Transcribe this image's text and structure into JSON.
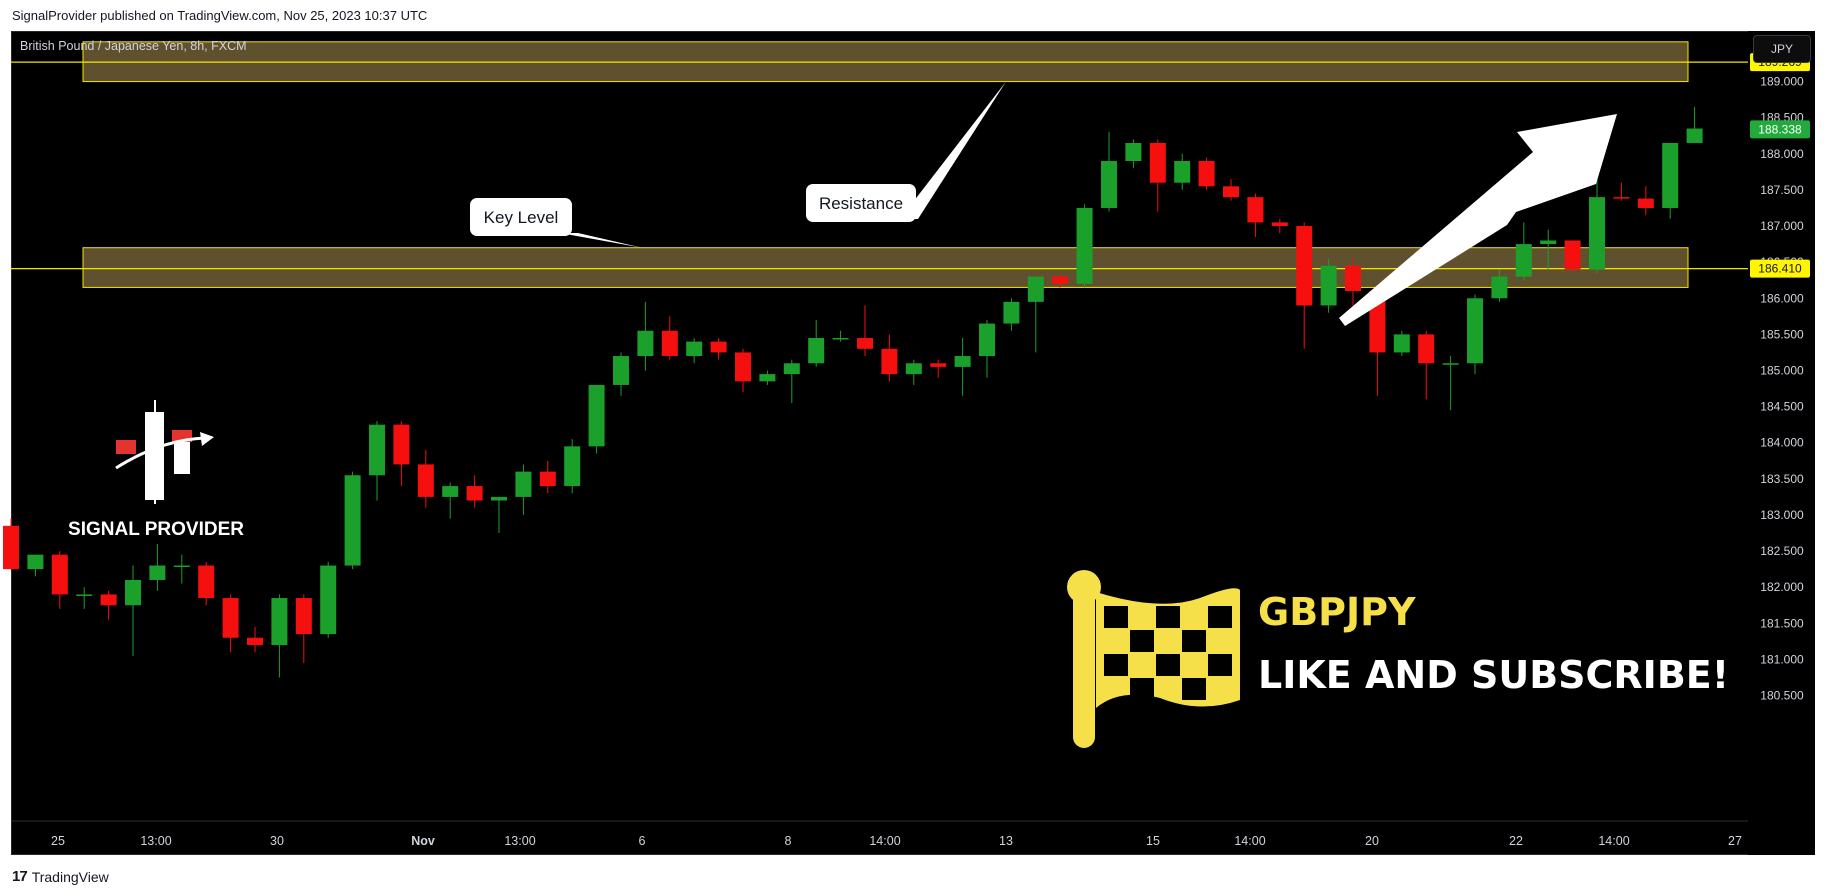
{
  "header": {
    "publisher_line": "SignalProvider published on TradingView.com, Nov 25, 2023 10:37 UTC"
  },
  "symbol_label": "British Pound / Japanese Yen, 8h, FXCM",
  "currency_button": "JPY",
  "footer": {
    "logo_mark": "17",
    "brand": "TradingView"
  },
  "brand_overlay": {
    "name": "SIGNAL PROVIDER"
  },
  "promo": {
    "ticker": "GBPJPY",
    "call_to_action": "LIKE AND SUBSCRIBE!"
  },
  "colors": {
    "up": "#1ca02c",
    "down": "#f50f0f",
    "zone_fill": "#6a5a33",
    "zone_border": "#f2e600",
    "highlight_label": "#fff600",
    "last_price_label": "#22ab3c",
    "promo_yellow": "#f5e04a"
  },
  "chart_data": {
    "type": "candlestick",
    "symbol": "British Pound / Japanese Yen",
    "timeframe": "8h",
    "exchange": "FXCM",
    "ylim": [
      180.3,
      189.7
    ],
    "y_ticks": [
      "180.500",
      "181.000",
      "181.500",
      "182.000",
      "182.500",
      "183.000",
      "183.500",
      "184.000",
      "184.500",
      "185.000",
      "185.500",
      "186.000",
      "186.500",
      "187.000",
      "187.500",
      "188.000",
      "188.500",
      "189.000",
      "189.500"
    ],
    "x_ticks": [
      "25",
      "13:00",
      "30",
      "Nov",
      "13:00",
      "6",
      "8",
      "14:00",
      "13",
      "15",
      "14:00",
      "20",
      "22",
      "14:00",
      "27"
    ],
    "candles": [
      {
        "o": 182.85,
        "h": 182.95,
        "l": 182.25,
        "c": 182.25
      },
      {
        "o": 182.25,
        "h": 182.45,
        "l": 182.15,
        "c": 182.45
      },
      {
        "o": 182.45,
        "h": 182.5,
        "l": 181.7,
        "c": 181.9
      },
      {
        "o": 181.9,
        "h": 182.0,
        "l": 181.7,
        "c": 181.9
      },
      {
        "o": 181.9,
        "h": 181.95,
        "l": 181.55,
        "c": 181.75
      },
      {
        "o": 181.75,
        "h": 182.3,
        "l": 181.05,
        "c": 182.1
      },
      {
        "o": 182.1,
        "h": 182.6,
        "l": 181.95,
        "c": 182.3
      },
      {
        "o": 182.3,
        "h": 182.45,
        "l": 182.05,
        "c": 182.3
      },
      {
        "o": 182.3,
        "h": 182.35,
        "l": 181.75,
        "c": 181.85
      },
      {
        "o": 181.85,
        "h": 181.9,
        "l": 181.1,
        "c": 181.3
      },
      {
        "o": 181.3,
        "h": 181.45,
        "l": 181.1,
        "c": 181.2
      },
      {
        "o": 181.2,
        "h": 181.9,
        "l": 180.75,
        "c": 181.85
      },
      {
        "o": 181.85,
        "h": 181.9,
        "l": 180.95,
        "c": 181.35
      },
      {
        "o": 181.35,
        "h": 182.35,
        "l": 181.3,
        "c": 182.3
      },
      {
        "o": 182.3,
        "h": 183.6,
        "l": 182.25,
        "c": 183.55
      },
      {
        "o": 183.55,
        "h": 184.3,
        "l": 183.2,
        "c": 184.25
      },
      {
        "o": 184.25,
        "h": 184.3,
        "l": 183.4,
        "c": 183.7
      },
      {
        "o": 183.7,
        "h": 183.9,
        "l": 183.1,
        "c": 183.25
      },
      {
        "o": 183.25,
        "h": 183.45,
        "l": 182.95,
        "c": 183.4
      },
      {
        "o": 183.4,
        "h": 183.55,
        "l": 183.1,
        "c": 183.2
      },
      {
        "o": 183.2,
        "h": 183.25,
        "l": 182.75,
        "c": 183.25
      },
      {
        "o": 183.25,
        "h": 183.7,
        "l": 183.0,
        "c": 183.6
      },
      {
        "o": 183.6,
        "h": 183.75,
        "l": 183.3,
        "c": 183.4
      },
      {
        "o": 183.4,
        "h": 184.05,
        "l": 183.3,
        "c": 183.95
      },
      {
        "o": 183.95,
        "h": 184.8,
        "l": 183.85,
        "c": 184.8
      },
      {
        "o": 184.8,
        "h": 185.25,
        "l": 184.65,
        "c": 185.2
      },
      {
        "o": 185.2,
        "h": 185.95,
        "l": 185.0,
        "c": 185.55
      },
      {
        "o": 185.55,
        "h": 185.75,
        "l": 185.15,
        "c": 185.2
      },
      {
        "o": 185.2,
        "h": 185.45,
        "l": 185.1,
        "c": 185.4
      },
      {
        "o": 185.4,
        "h": 185.45,
        "l": 185.15,
        "c": 185.25
      },
      {
        "o": 185.25,
        "h": 185.3,
        "l": 184.7,
        "c": 184.85
      },
      {
        "o": 184.85,
        "h": 185.0,
        "l": 184.8,
        "c": 184.95
      },
      {
        "o": 184.95,
        "h": 185.15,
        "l": 184.55,
        "c": 185.1
      },
      {
        "o": 185.1,
        "h": 185.7,
        "l": 185.05,
        "c": 185.45
      },
      {
        "o": 185.45,
        "h": 185.55,
        "l": 185.4,
        "c": 185.45
      },
      {
        "o": 185.45,
        "h": 185.9,
        "l": 185.2,
        "c": 185.3
      },
      {
        "o": 185.3,
        "h": 185.5,
        "l": 184.85,
        "c": 184.95
      },
      {
        "o": 184.95,
        "h": 185.15,
        "l": 184.8,
        "c": 185.1
      },
      {
        "o": 185.1,
        "h": 185.15,
        "l": 184.9,
        "c": 185.05
      },
      {
        "o": 185.05,
        "h": 185.45,
        "l": 184.65,
        "c": 185.2
      },
      {
        "o": 185.2,
        "h": 185.7,
        "l": 184.9,
        "c": 185.65
      },
      {
        "o": 185.65,
        "h": 186.0,
        "l": 185.55,
        "c": 185.95
      },
      {
        "o": 185.95,
        "h": 186.3,
        "l": 185.25,
        "c": 186.3
      },
      {
        "o": 186.3,
        "h": 186.35,
        "l": 186.15,
        "c": 186.2
      },
      {
        "o": 186.2,
        "h": 187.3,
        "l": 186.15,
        "c": 187.25
      },
      {
        "o": 187.25,
        "h": 188.3,
        "l": 187.2,
        "c": 187.9
      },
      {
        "o": 187.9,
        "h": 188.2,
        "l": 187.8,
        "c": 188.15
      },
      {
        "o": 188.15,
        "h": 188.2,
        "l": 187.2,
        "c": 187.6
      },
      {
        "o": 187.6,
        "h": 188.0,
        "l": 187.5,
        "c": 187.9
      },
      {
        "o": 187.9,
        "h": 187.95,
        "l": 187.5,
        "c": 187.55
      },
      {
        "o": 187.55,
        "h": 187.65,
        "l": 187.35,
        "c": 187.4
      },
      {
        "o": 187.4,
        "h": 187.45,
        "l": 186.85,
        "c": 187.05
      },
      {
        "o": 187.05,
        "h": 187.1,
        "l": 186.9,
        "c": 187.0
      },
      {
        "o": 187.0,
        "h": 187.05,
        "l": 185.3,
        "c": 185.9
      },
      {
        "o": 185.9,
        "h": 186.55,
        "l": 185.8,
        "c": 186.45
      },
      {
        "o": 186.45,
        "h": 186.55,
        "l": 185.9,
        "c": 186.1
      },
      {
        "o": 186.1,
        "h": 186.15,
        "l": 184.65,
        "c": 185.25
      },
      {
        "o": 185.25,
        "h": 185.55,
        "l": 185.2,
        "c": 185.5
      },
      {
        "o": 185.5,
        "h": 185.55,
        "l": 184.6,
        "c": 185.1
      },
      {
        "o": 185.1,
        "h": 185.2,
        "l": 184.45,
        "c": 185.1
      },
      {
        "o": 185.1,
        "h": 186.05,
        "l": 184.95,
        "c": 186.0
      },
      {
        "o": 186.0,
        "h": 186.4,
        "l": 185.95,
        "c": 186.3
      },
      {
        "o": 186.3,
        "h": 187.05,
        "l": 186.25,
        "c": 186.75
      },
      {
        "o": 186.75,
        "h": 186.95,
        "l": 186.4,
        "c": 186.8
      },
      {
        "o": 186.8,
        "h": 186.8,
        "l": 186.35,
        "c": 186.4
      },
      {
        "o": 186.4,
        "h": 187.65,
        "l": 186.35,
        "c": 187.4
      },
      {
        "o": 187.4,
        "h": 187.6,
        "l": 187.35,
        "c": 187.38
      },
      {
        "o": 187.38,
        "h": 187.55,
        "l": 187.15,
        "c": 187.25
      },
      {
        "o": 187.25,
        "h": 188.15,
        "l": 187.1,
        "c": 188.15
      },
      {
        "o": 188.15,
        "h": 188.65,
        "l": 188.15,
        "c": 188.35
      }
    ],
    "zones": [
      {
        "label": "Resistance",
        "low": 189.0,
        "high": 189.55,
        "line": 189.269
      },
      {
        "label": "Key Level",
        "low": 186.15,
        "high": 186.7,
        "line": 186.41
      }
    ],
    "price_labels": [
      {
        "text": "189.269",
        "value": 189.269,
        "style": "zone"
      },
      {
        "text": "186.410",
        "value": 186.41,
        "style": "zone"
      },
      {
        "text": "188.338",
        "value": 188.338,
        "style": "last"
      }
    ],
    "annotations": [
      {
        "text": "Key Level",
        "points_to": 186.7
      },
      {
        "text": "Resistance",
        "points_to": 189.0
      }
    ]
  }
}
